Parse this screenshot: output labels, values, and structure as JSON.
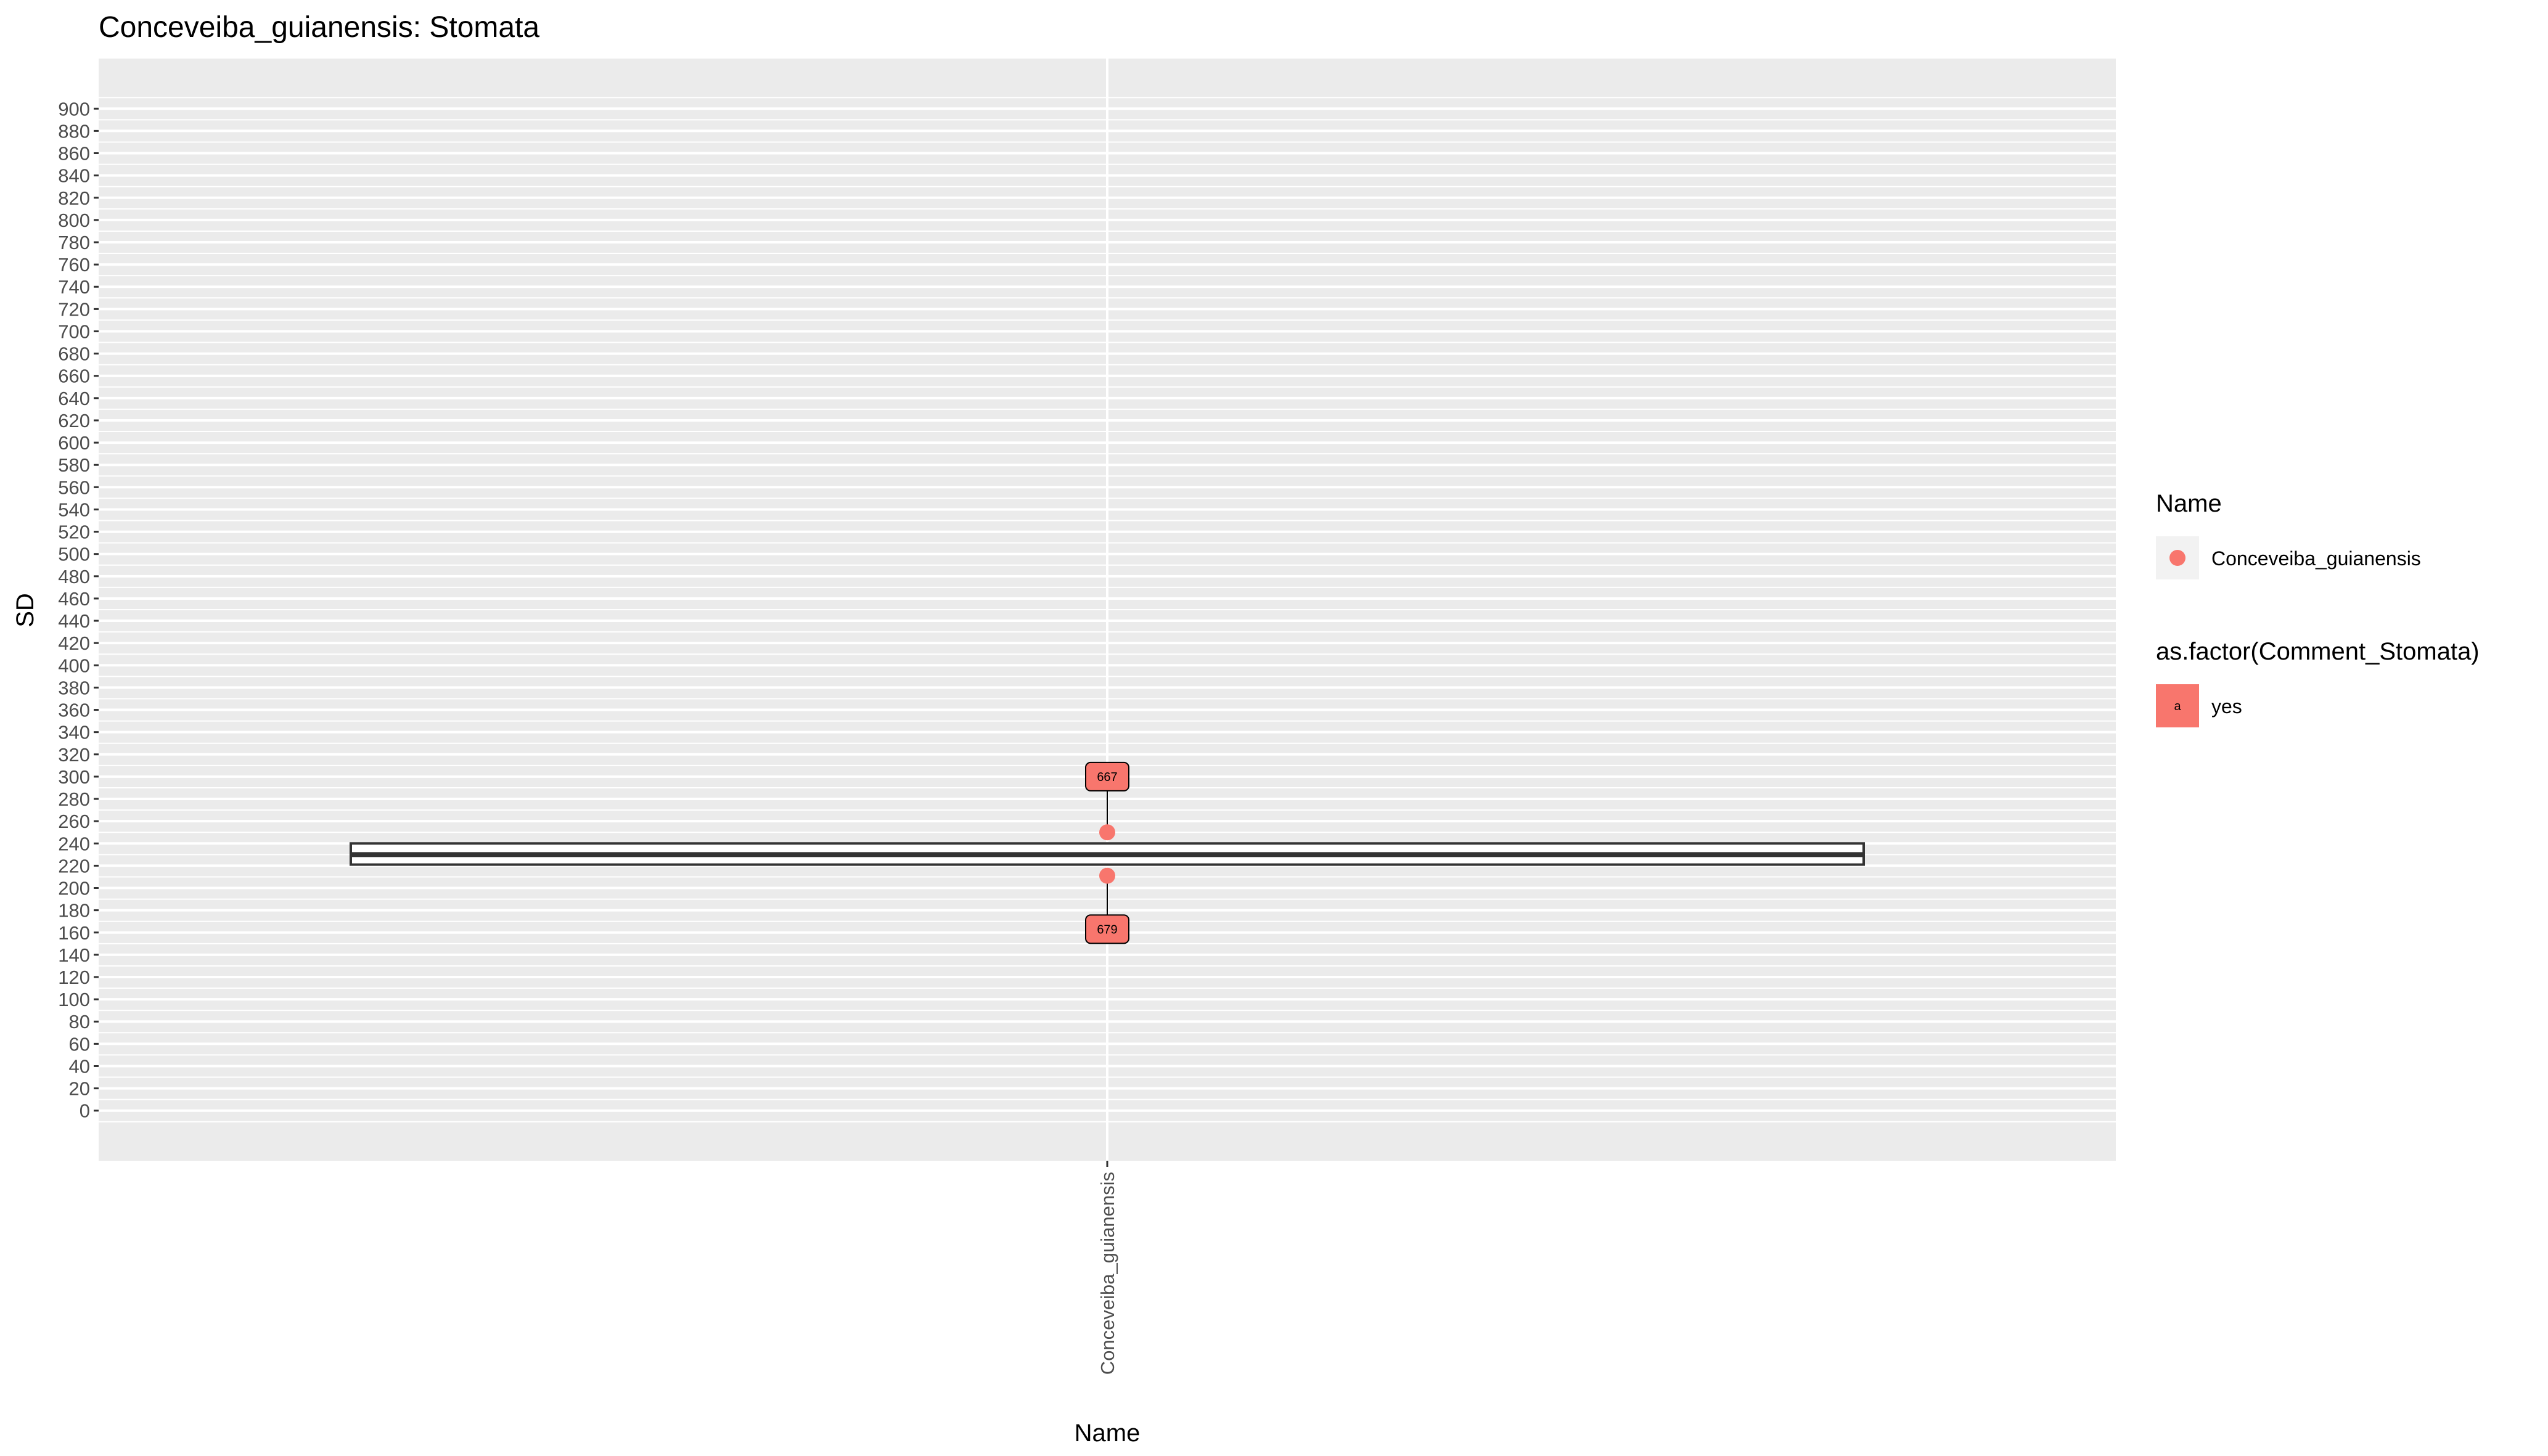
{
  "chart_data": {
    "type": "box",
    "title": "Conceveiba_guianensis: Stomata",
    "xlabel": "Name",
    "ylabel": "SD",
    "categories": [
      "Conceveiba_guianensis"
    ],
    "ylim": [
      -45,
      945
    ],
    "y_ticks": [
      0,
      20,
      40,
      60,
      80,
      100,
      120,
      140,
      160,
      180,
      200,
      220,
      240,
      260,
      280,
      300,
      320,
      340,
      360,
      380,
      400,
      420,
      440,
      460,
      480,
      500,
      520,
      540,
      560,
      580,
      600,
      620,
      640,
      660,
      680,
      700,
      720,
      740,
      760,
      780,
      800,
      820,
      840,
      860,
      880,
      900
    ],
    "grid": true,
    "boxes": [
      {
        "category": "Conceveiba_guianensis",
        "q1": 221,
        "median": 230,
        "q3": 240
      }
    ],
    "points": [
      {
        "category": "Conceveiba_guianensis",
        "y": 250,
        "label": "667",
        "label_y": 300
      },
      {
        "category": "Conceveiba_guianensis",
        "y": 211,
        "label": "679",
        "label_y": 163
      }
    ],
    "colors": {
      "series": "#F8766D",
      "panel": "#EBEBEB",
      "grid": "#ffffff"
    },
    "legend": {
      "position": "right",
      "groups": [
        {
          "title": "Name",
          "items": [
            {
              "label": "Conceveiba_guianensis",
              "shape": "point"
            }
          ]
        },
        {
          "title": "as.factor(Comment_Stomata)",
          "items": [
            {
              "label": "yes",
              "shape": "label",
              "key_text": "a"
            }
          ]
        }
      ]
    }
  }
}
